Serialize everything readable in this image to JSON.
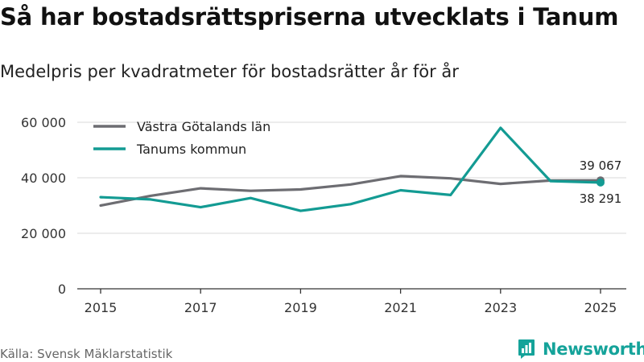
{
  "title": "Så har bostadsrättspriserna utvecklats i Tanum",
  "subtitle": "Medelpris per kvadratmeter för bostadsrätter år för år",
  "source": "Källa: Svensk Mäklarstatistik",
  "brand": "Newsworthy",
  "colors": {
    "grid": "#d9d9d9",
    "axis": "#333333",
    "brand": "#15a39a"
  },
  "chart_data": {
    "type": "line",
    "title": "Så har bostadsrättspriserna utvecklats i Tanum",
    "subtitle": "Medelpris per kvadratmeter för bostadsrätter år för år",
    "xlabel": "",
    "ylabel": "",
    "x": [
      2015,
      2016,
      2017,
      2018,
      2019,
      2020,
      2021,
      2022,
      2023,
      2024,
      2025
    ],
    "xticks": [
      "2015",
      "2017",
      "2019",
      "2021",
      "2023",
      "2025"
    ],
    "xlim": [
      2015,
      2025
    ],
    "ylim": [
      0,
      60000
    ],
    "yticks": [
      "0",
      "20 000",
      "40 000",
      "60 000"
    ],
    "grid": "horizontal",
    "legend": "top-left",
    "series": [
      {
        "name": "Västra Götalands län",
        "color": "#6d6d72",
        "values": [
          30000,
          33500,
          36200,
          35300,
          35800,
          37600,
          40600,
          39800,
          37800,
          39000,
          39067
        ],
        "end_label": "39 067",
        "end_label_position": "above"
      },
      {
        "name": "Tanums kommun",
        "color": "#139b93",
        "values": [
          33000,
          32200,
          29400,
          32700,
          28100,
          30500,
          35500,
          33800,
          58000,
          38800,
          38291
        ],
        "end_label": "38 291",
        "end_label_position": "below"
      }
    ]
  }
}
